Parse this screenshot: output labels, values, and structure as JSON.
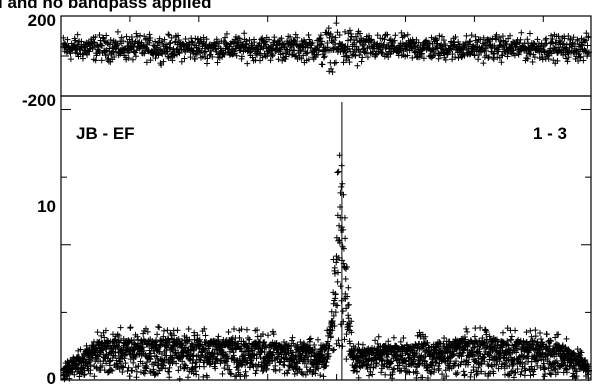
{
  "title": "l and no bandpass applied",
  "chart_data": [
    {
      "type": "scatter",
      "panel": "phase",
      "ylim": [
        -200,
        200
      ],
      "yticks": [
        {
          "value": 200,
          "label": "200"
        },
        {
          "value": -200,
          "label": "-200"
        }
      ],
      "marker": "plus",
      "band": {
        "center": 40,
        "spread": 90
      }
    },
    {
      "type": "scatter",
      "panel": "amplitude",
      "ylim": [
        0,
        21
      ],
      "yticks": [
        {
          "value": 10,
          "label": "10"
        },
        {
          "value": 0,
          "label": "0"
        }
      ],
      "baseline_label": "JB - EF",
      "index_label": "1 - 3",
      "marker": "plus",
      "series": [
        {
          "x": 0.0,
          "y": 0.8
        },
        {
          "x": 0.03,
          "y": 1.8
        },
        {
          "x": 0.06,
          "y": 2.8
        },
        {
          "x": 0.1,
          "y": 3.0
        },
        {
          "x": 0.15,
          "y": 3.0
        },
        {
          "x": 0.2,
          "y": 3.1
        },
        {
          "x": 0.25,
          "y": 3.0
        },
        {
          "x": 0.3,
          "y": 3.0
        },
        {
          "x": 0.35,
          "y": 2.9
        },
        {
          "x": 0.4,
          "y": 2.8
        },
        {
          "x": 0.45,
          "y": 2.6
        },
        {
          "x": 0.48,
          "y": 2.4
        },
        {
          "x": 0.5,
          "y": 2.7
        },
        {
          "x": 0.51,
          "y": 4.5
        },
        {
          "x": 0.515,
          "y": 7.5
        },
        {
          "x": 0.52,
          "y": 11.5
        },
        {
          "x": 0.525,
          "y": 14.0
        },
        {
          "x": 0.53,
          "y": 15.2
        },
        {
          "x": 0.535,
          "y": 13.0
        },
        {
          "x": 0.54,
          "y": 9.0
        },
        {
          "x": 0.545,
          "y": 5.0
        },
        {
          "x": 0.55,
          "y": 2.6
        },
        {
          "x": 0.56,
          "y": 2.3
        },
        {
          "x": 0.6,
          "y": 2.5
        },
        {
          "x": 0.65,
          "y": 2.6
        },
        {
          "x": 0.7,
          "y": 2.8
        },
        {
          "x": 0.75,
          "y": 2.9
        },
        {
          "x": 0.8,
          "y": 3.0
        },
        {
          "x": 0.85,
          "y": 3.0
        },
        {
          "x": 0.9,
          "y": 2.9
        },
        {
          "x": 0.95,
          "y": 2.6
        },
        {
          "x": 1.0,
          "y": 1.2
        }
      ]
    }
  ]
}
